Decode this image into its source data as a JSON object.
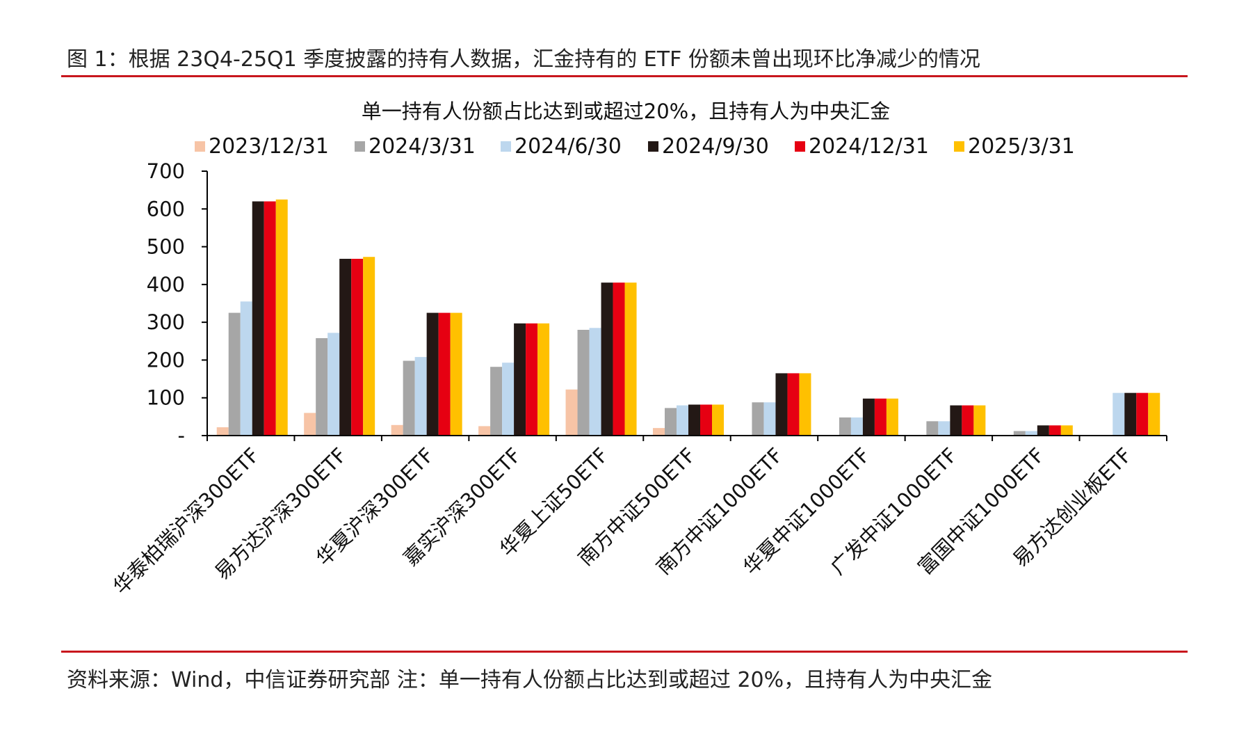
{
  "figure": {
    "title": "图 1：根据 23Q4-25Q1 季度披露的持有人数据，汇金持有的 ETF 份额未曾出现环比净减少的情况",
    "source": "资料来源：Wind，中信证券研究部  注：单一持有人份额占比达到或超过 20%，且持有人为中央汇金"
  },
  "chart_data": {
    "type": "bar",
    "title": "单一持有人份额占比达到或超过20%，且持有人为中央汇金",
    "xlabel": "",
    "ylabel": "",
    "ylim": [
      0,
      700
    ],
    "yticks": [
      0,
      100,
      200,
      300,
      400,
      500,
      600,
      700
    ],
    "ytick_labels": [
      "-",
      "100",
      "200",
      "300",
      "400",
      "500",
      "600",
      "700"
    ],
    "grid": false,
    "legend_position": "top",
    "categories": [
      "华泰柏瑞沪深300ETF",
      "易方达沪深300ETF",
      "华夏沪深300ETF",
      "嘉实沪深300ETF",
      "华夏上证50ETF",
      "南方中证500ETF",
      "南方中证1000ETF",
      "华夏中证1000ETF",
      "广发中证1000ETF",
      "富国中证1000ETF",
      "易方达创业板ETF"
    ],
    "series": [
      {
        "name": "2023/12/31",
        "color": "#f7c4a6",
        "values": [
          22,
          60,
          28,
          25,
          122,
          20,
          0,
          0,
          0,
          0,
          0
        ]
      },
      {
        "name": "2024/3/31",
        "color": "#a6a6a6",
        "values": [
          325,
          258,
          198,
          182,
          280,
          73,
          88,
          48,
          38,
          12,
          0
        ]
      },
      {
        "name": "2024/6/30",
        "color": "#bdd7ee",
        "values": [
          355,
          272,
          208,
          193,
          285,
          80,
          88,
          48,
          38,
          12,
          113
        ]
      },
      {
        "name": "2024/9/30",
        "color": "#231815",
        "values": [
          620,
          468,
          325,
          297,
          405,
          82,
          165,
          98,
          80,
          27,
          113
        ]
      },
      {
        "name": "2024/12/31",
        "color": "#e60012",
        "values": [
          620,
          468,
          325,
          297,
          405,
          82,
          165,
          98,
          80,
          27,
          113
        ]
      },
      {
        "name": "2025/3/31",
        "color": "#ffc000",
        "values": [
          625,
          473,
          325,
          297,
          405,
          82,
          165,
          98,
          80,
          27,
          113
        ]
      }
    ]
  }
}
